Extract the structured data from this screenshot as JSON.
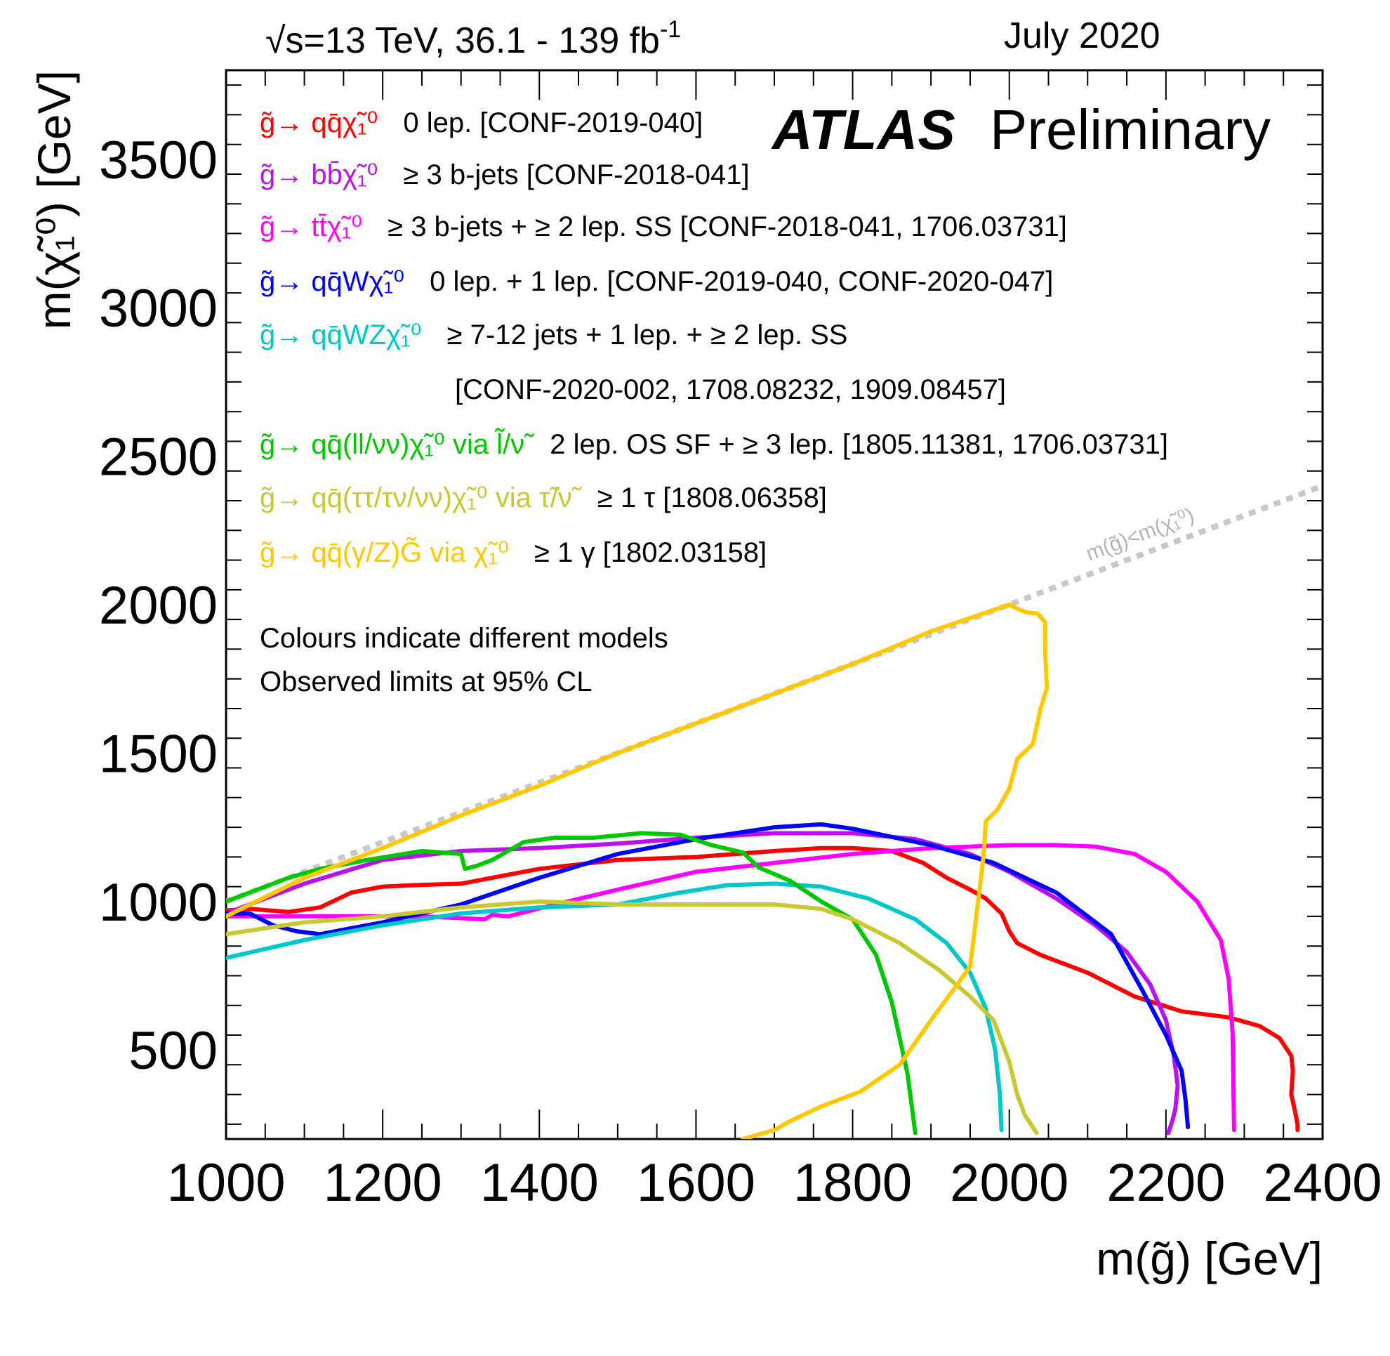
{
  "chart_data": {
    "type": "line",
    "header_left": "√s=13 TeV, 36.1 - 139 fb",
    "header_left_sup": "-1",
    "header_right": "July 2020",
    "brand": "ATLAS",
    "brand_suffix": "Preliminary",
    "xlabel": "m(g̃) [GeV]",
    "ylabel": "m(χ̃₁⁰) [GeV]",
    "xlim": [
      1000,
      2400
    ],
    "ylim": [
      200,
      3800
    ],
    "x_ticks": [
      1000,
      1200,
      1400,
      1600,
      1800,
      2000,
      2200,
      2400
    ],
    "y_ticks": [
      500,
      1000,
      1500,
      2000,
      2500,
      3000,
      3500
    ],
    "notes": [
      "Colours indicate different models",
      "Observed limits at 95% CL"
    ],
    "diagonal": {
      "label": "m(g̃)<m(χ̃₁⁰)",
      "color": "#c8c8c8",
      "x": [
        1000,
        2400
      ],
      "y": [
        1000,
        2400
      ]
    },
    "legend": [
      {
        "process": "g̃→ qq̄χ̃₁⁰",
        "text": "0 lep. [CONF-2019-040]",
        "color": "#ff0000"
      },
      {
        "process": "g̃→ bb̄χ̃₁⁰",
        "text": "≥ 3 b-jets [CONF-2018-041]",
        "color": "#bb11ee"
      },
      {
        "process": "g̃→ tt̄χ̃₁⁰",
        "text": "≥ 3 b-jets + ≥ 2 lep. SS [CONF-2018-041, 1706.03731]",
        "color": "#ff00ff"
      },
      {
        "process": "g̃→ qq̄Wχ̃₁⁰",
        "text": "0 lep. + 1 lep. [CONF-2019-040, CONF-2020-047]",
        "color": "#0000ff"
      },
      {
        "process": "g̃→ qq̄WZχ̃₁⁰",
        "text": "≥ 7-12 jets + 1 lep. + ≥ 2 lep. SS",
        "text2": "[CONF-2020-002, 1708.08232, 1909.08457]",
        "color": "#00c8c8"
      },
      {
        "process": "g̃→ qq̄(ll/νν)χ̃₁⁰ via l̃/ν̃",
        "text": "2 lep. OS SF + ≥ 3 lep. [1805.11381, 1706.03731]",
        "color": "#00c800"
      },
      {
        "process": "g̃→ qq̄(ττ/τν/νν)χ̃₁⁰ via τ̃/ν̃",
        "text": "≥ 1 τ [1808.06358]",
        "color": "#c8c832"
      },
      {
        "process": "g̃→ qq̄(γ/Z)G̃ via χ̃₁⁰",
        "text": "≥ 1 γ [1802.03158]",
        "color": "#ffc800"
      }
    ],
    "series": [
      {
        "name": "qqchi",
        "color": "#ff0000",
        "x": [
          1000,
          1030,
          1080,
          1120,
          1160,
          1200,
          1240,
          1300,
          1400,
          1500,
          1600,
          1700,
          1760,
          1800,
          1850,
          1890,
          1920,
          1950,
          1970,
          1990,
          2000,
          2010,
          2040,
          2100,
          2160,
          2220,
          2280,
          2320,
          2345,
          2360,
          2362,
          2360,
          2365,
          2368,
          2368
        ],
        "y": [
          970,
          975,
          965,
          980,
          1030,
          1050,
          1055,
          1060,
          1110,
          1140,
          1150,
          1170,
          1180,
          1180,
          1170,
          1130,
          1080,
          1040,
          1010,
          960,
          900,
          860,
          820,
          760,
          680,
          630,
          610,
          580,
          540,
          480,
          430,
          350,
          290,
          250,
          230
        ]
      },
      {
        "name": "bbchi",
        "color": "#bb11ee",
        "x": [
          1000,
          1100,
          1200,
          1300,
          1400,
          1500,
          1600,
          1700,
          1800,
          1880,
          1950,
          2000,
          2060,
          2110,
          2150,
          2180,
          2200,
          2210,
          2215,
          2212,
          2208,
          2203
        ],
        "y": [
          960,
          1060,
          1140,
          1170,
          1180,
          1195,
          1215,
          1230,
          1230,
          1210,
          1160,
          1100,
          1010,
          920,
          830,
          720,
          600,
          480,
          380,
          300,
          260,
          220
        ]
      },
      {
        "name": "ttchi",
        "color": "#ff00ff",
        "x": [
          1000,
          1250,
          1330,
          1340,
          1360,
          1420,
          1500,
          1600,
          1700,
          1800,
          1900,
          2000,
          2060,
          2110,
          2160,
          2200,
          2240,
          2270,
          2280,
          2285,
          2287
        ],
        "y": [
          950,
          950,
          940,
          955,
          950,
          990,
          1040,
          1100,
          1130,
          1160,
          1180,
          1190,
          1190,
          1185,
          1160,
          1100,
          1000,
          870,
          740,
          560,
          230
        ]
      },
      {
        "name": "qqWchi",
        "color": "#0000ff",
        "x": [
          1000,
          1030,
          1060,
          1090,
          1120,
          1200,
          1300,
          1400,
          1500,
          1600,
          1700,
          1760,
          1800,
          1900,
          1980,
          2060,
          2130,
          2170,
          2200,
          2220,
          2225,
          2228
        ],
        "y": [
          960,
          960,
          920,
          900,
          890,
          930,
          990,
          1080,
          1160,
          1210,
          1250,
          1260,
          1245,
          1190,
          1130,
          1030,
          890,
          700,
          550,
          430,
          330,
          240
        ]
      },
      {
        "name": "qqWZchi",
        "color": "#00c8c8",
        "x": [
          1000,
          1100,
          1200,
          1300,
          1400,
          1500,
          1580,
          1640,
          1700,
          1760,
          1820,
          1880,
          1920,
          1950,
          1970,
          1982,
          1988,
          1990
        ],
        "y": [
          810,
          870,
          920,
          960,
          980,
          990,
          1030,
          1055,
          1060,
          1050,
          1010,
          940,
          860,
          760,
          640,
          500,
          350,
          230
        ]
      },
      {
        "name": "qqllchi",
        "color": "#00c800",
        "x": [
          1000,
          1040,
          1080,
          1120,
          1180,
          1250,
          1300,
          1305,
          1320,
          1340,
          1380,
          1420,
          1470,
          1530,
          1580,
          1620,
          1660,
          1680,
          1720,
          1760,
          1800,
          1830,
          1850,
          1870,
          1875,
          1880
        ],
        "y": [
          1000,
          1040,
          1080,
          1110,
          1140,
          1170,
          1160,
          1110,
          1120,
          1140,
          1200,
          1215,
          1215,
          1230,
          1225,
          1190,
          1165,
          1115,
          1070,
          1000,
          940,
          820,
          660,
          420,
          320,
          220
        ]
      },
      {
        "name": "qqtauchi",
        "color": "#c8c832",
        "x": [
          1000,
          1050,
          1100,
          1200,
          1300,
          1400,
          1500,
          1600,
          1700,
          1760,
          1800,
          1860,
          1910,
          1950,
          1980,
          2000,
          2010,
          2020,
          2035
        ],
        "y": [
          890,
          910,
          930,
          950,
          980,
          1000,
          990,
          990,
          990,
          975,
          940,
          860,
          770,
          680,
          600,
          460,
          350,
          280,
          220
        ]
      },
      {
        "name": "qqgammaG",
        "color": "#ffc800",
        "x": [
          1000,
          1100,
          1200,
          1300,
          1400,
          1500,
          1600,
          1700,
          1800,
          1900,
          2000,
          2020,
          2036,
          2046,
          2046,
          2048,
          2040,
          2030,
          2010,
          2000,
          1985,
          1970,
          1967,
          1950,
          1900,
          1860,
          1810,
          1760,
          1720,
          1700,
          1660
        ],
        "y": [
          950,
          1080,
          1180,
          1290,
          1390,
          1500,
          1600,
          1700,
          1800,
          1910,
          2000,
          1975,
          1970,
          1940,
          1830,
          1720,
          1650,
          1530,
          1480,
          1380,
          1310,
          1270,
          1150,
          780,
          600,
          450,
          360,
          310,
          260,
          230,
          200
        ]
      }
    ]
  }
}
